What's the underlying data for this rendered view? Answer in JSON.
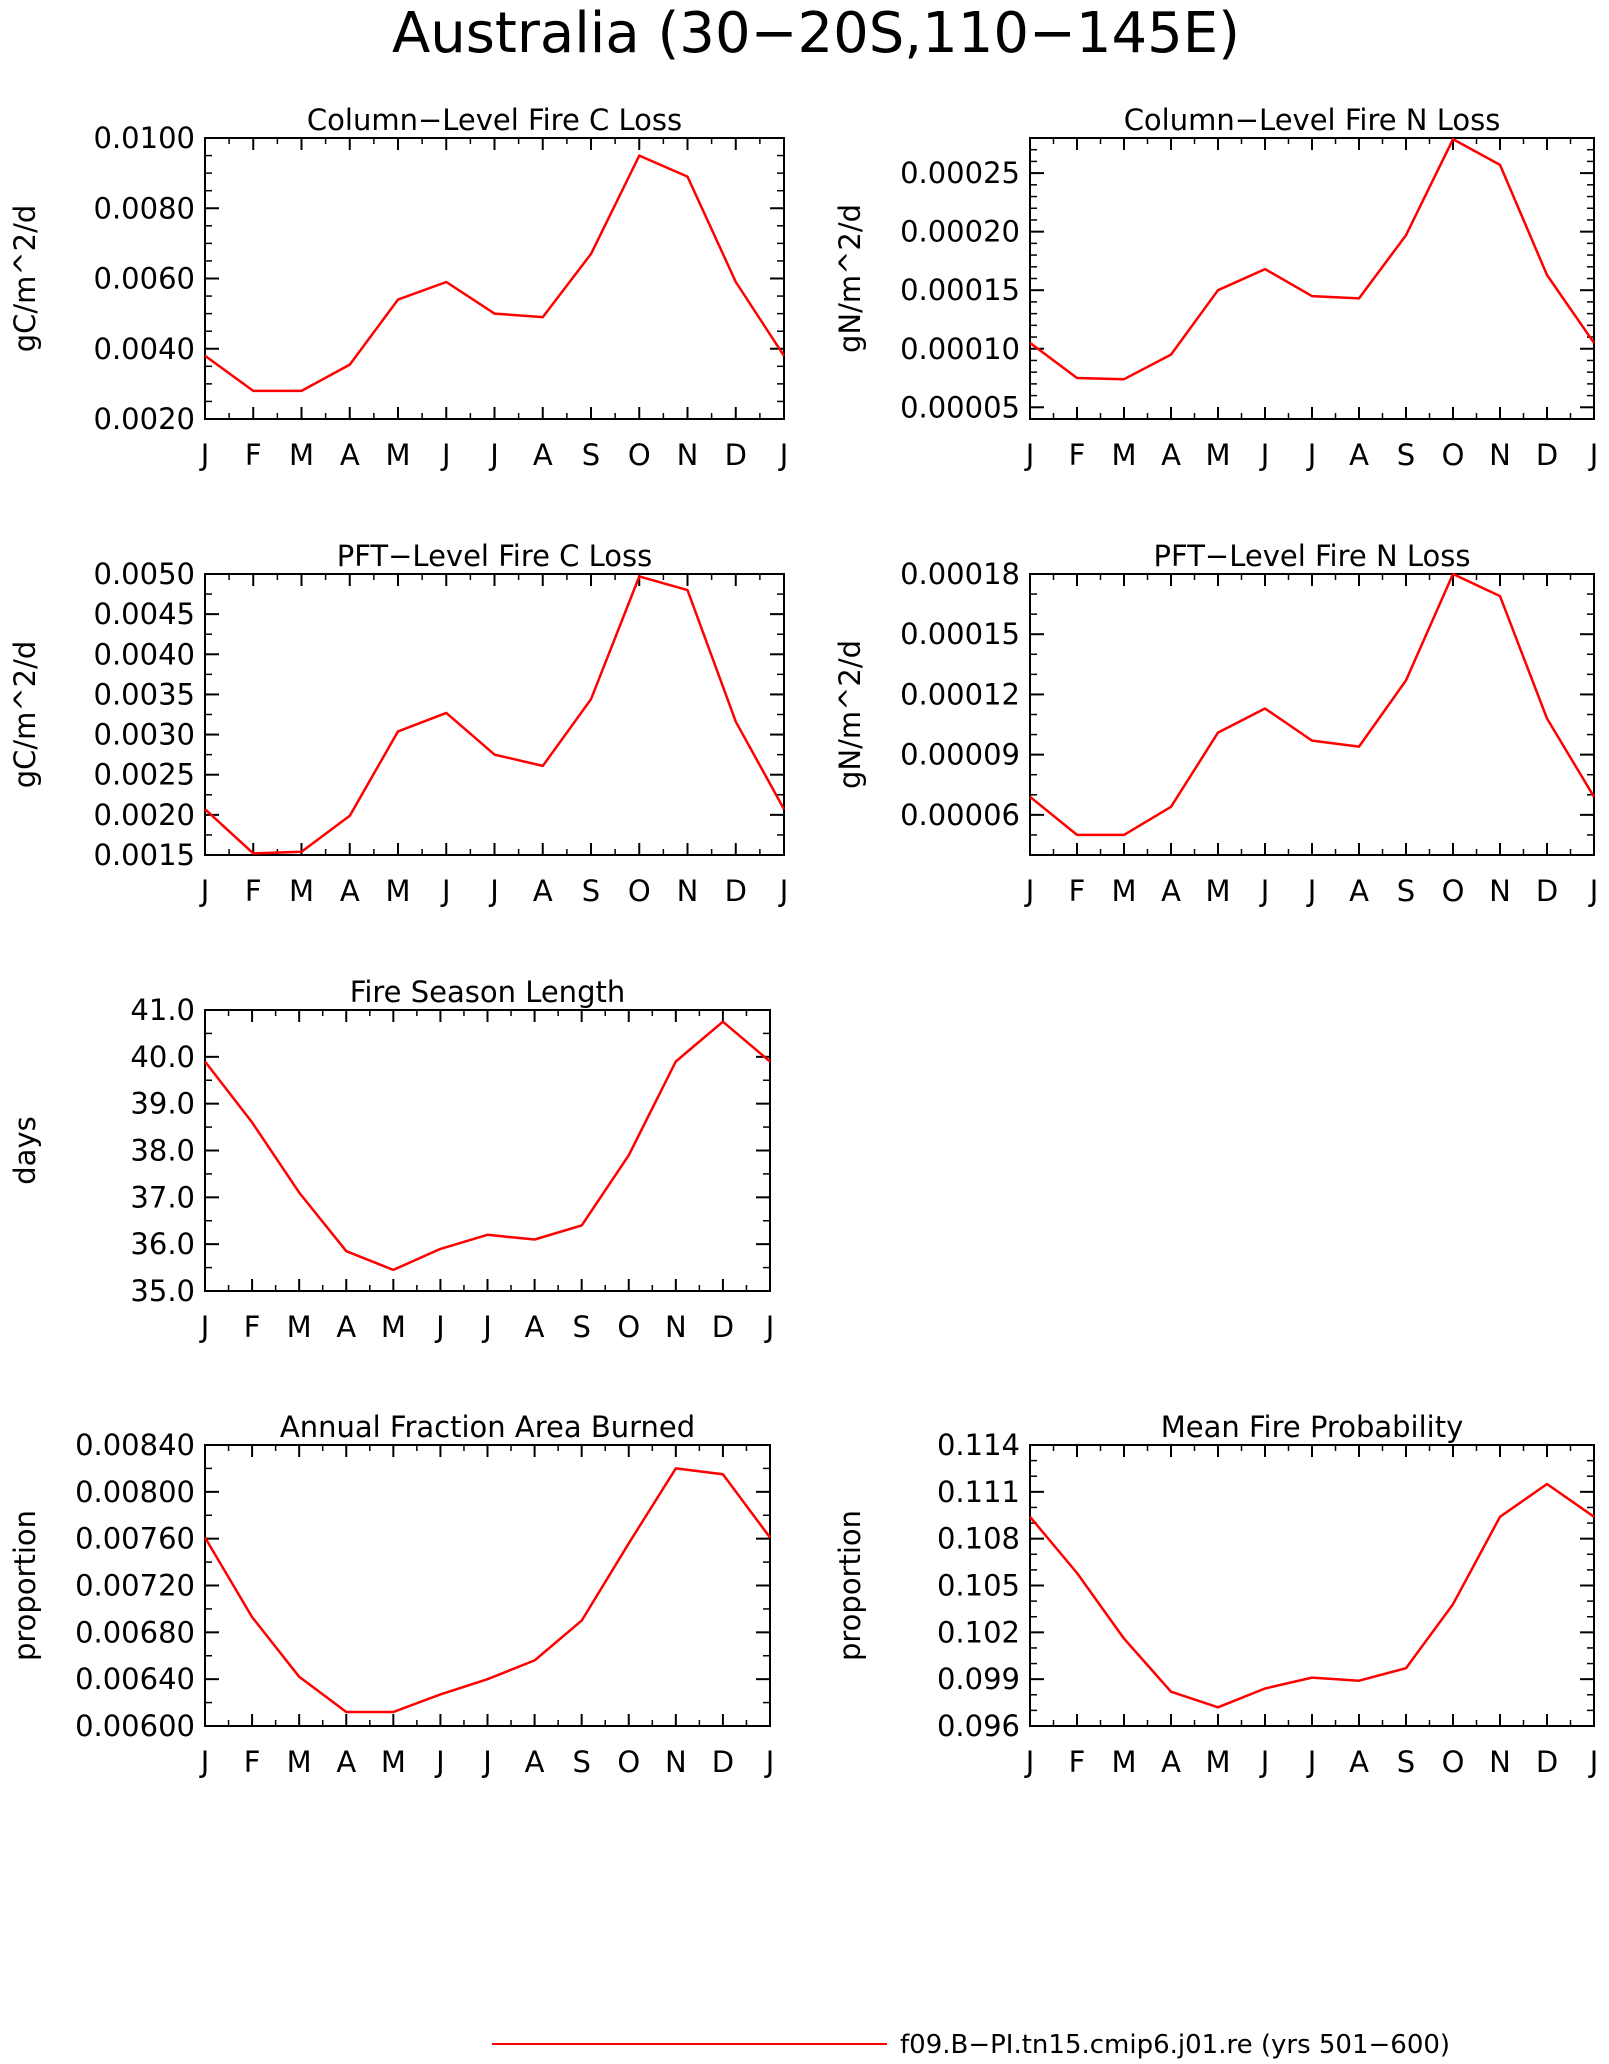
{
  "figure": {
    "title": "Australia (30−20S,110−145E)",
    "line_color": "#ff0000"
  },
  "legend": {
    "label": "f09.B−PI.tn15.cmip6.j01.re (yrs 501−600)"
  },
  "chart_data": [
    {
      "type": "line",
      "title": "Column−Level Fire C Loss",
      "ylabel": "gC/m^2/d",
      "x": [
        "J",
        "F",
        "M",
        "A",
        "M",
        "J",
        "J",
        "A",
        "S",
        "O",
        "N",
        "D",
        "J"
      ],
      "ylim": [
        0.002,
        0.01
      ],
      "yticks": [
        "0.0020",
        "0.0040",
        "0.0060",
        "0.0080",
        "0.0100"
      ],
      "yminor": 0.0005,
      "values": [
        0.0038,
        0.0028,
        0.0028,
        0.00355,
        0.0054,
        0.0059,
        0.005,
        0.0049,
        0.0067,
        0.0095,
        0.0089,
        0.0059,
        0.0038
      ]
    },
    {
      "type": "line",
      "title": "Column−Level Fire N Loss",
      "ylabel": "gN/m^2/d",
      "x": [
        "J",
        "F",
        "M",
        "A",
        "M",
        "J",
        "J",
        "A",
        "S",
        "O",
        "N",
        "D",
        "J"
      ],
      "ylim": [
        4e-05,
        0.00028
      ],
      "yticks": [
        "0.00005",
        "0.00010",
        "0.00015",
        "0.00020",
        "0.00025"
      ],
      "yminor": 1e-05,
      "values": [
        0.000105,
        7.5e-05,
        7.4e-05,
        9.5e-05,
        0.00015,
        0.000168,
        0.000145,
        0.000143,
        0.000197,
        0.000279,
        0.000257,
        0.000163,
        0.000105
      ]
    },
    {
      "type": "line",
      "title": "PFT−Level Fire C Loss",
      "ylabel": "gC/m^2/d",
      "x": [
        "J",
        "F",
        "M",
        "A",
        "M",
        "J",
        "J",
        "A",
        "S",
        "O",
        "N",
        "D",
        "J"
      ],
      "ylim": [
        0.0015,
        0.005
      ],
      "yticks": [
        "0.0015",
        "0.0020",
        "0.0025",
        "0.0030",
        "0.0035",
        "0.0040",
        "0.0045",
        "0.0050"
      ],
      "yminor": 0.00025,
      "values": [
        0.00207,
        0.00152,
        0.00154,
        0.00199,
        0.00304,
        0.00327,
        0.00275,
        0.00261,
        0.00344,
        0.00497,
        0.0048,
        0.00316,
        0.00207
      ]
    },
    {
      "type": "line",
      "title": "PFT−Level Fire N Loss",
      "ylabel": "gN/m^2/d",
      "x": [
        "J",
        "F",
        "M",
        "A",
        "M",
        "J",
        "J",
        "A",
        "S",
        "O",
        "N",
        "D",
        "J"
      ],
      "ylim": [
        4e-05,
        0.00018
      ],
      "yticks": [
        "0.00006",
        "0.00009",
        "0.00012",
        "0.00015",
        "0.00018"
      ],
      "yminor": 1e-05,
      "values": [
        6.9e-05,
        5e-05,
        5e-05,
        6.4e-05,
        0.000101,
        0.000113,
        9.7e-05,
        9.4e-05,
        0.000127,
        0.00018,
        0.000169,
        0.000108,
        6.9e-05
      ]
    },
    {
      "type": "line",
      "title": "Fire Season Length",
      "ylabel": "days",
      "x": [
        "J",
        "F",
        "M",
        "A",
        "M",
        "J",
        "J",
        "A",
        "S",
        "O",
        "N",
        "D",
        "J"
      ],
      "ylim": [
        35,
        41
      ],
      "yticks": [
        "35.0",
        "36.0",
        "37.0",
        "38.0",
        "39.0",
        "40.0",
        "41.0"
      ],
      "yminor": 0.5,
      "values": [
        39.9,
        38.6,
        37.1,
        35.85,
        35.45,
        35.9,
        36.2,
        36.1,
        36.4,
        37.9,
        39.9,
        40.75,
        39.9
      ]
    },
    {
      "type": "line",
      "title": "Annual Fraction Area Burned",
      "ylabel": "proportion",
      "x": [
        "J",
        "F",
        "M",
        "A",
        "M",
        "J",
        "J",
        "A",
        "S",
        "O",
        "N",
        "D",
        "J"
      ],
      "ylim": [
        0.006,
        0.0084
      ],
      "yticks": [
        "0.00600",
        "0.00640",
        "0.00680",
        "0.00720",
        "0.00760",
        "0.00800",
        "0.00840"
      ],
      "yminor": 0.0002,
      "values": [
        0.00761,
        0.00693,
        0.00642,
        0.00612,
        0.00612,
        0.00627,
        0.0064,
        0.00656,
        0.0069,
        0.00756,
        0.0082,
        0.00815,
        0.00761
      ]
    },
    {
      "type": "line",
      "title": "Mean Fire Probability",
      "ylabel": "proportion",
      "x": [
        "J",
        "F",
        "M",
        "A",
        "M",
        "J",
        "J",
        "A",
        "S",
        "O",
        "N",
        "D",
        "J"
      ],
      "ylim": [
        0.096,
        0.114
      ],
      "yticks": [
        "0.096",
        "0.099",
        "0.102",
        "0.105",
        "0.108",
        "0.111",
        "0.114"
      ],
      "yminor": 0.001,
      "values": [
        0.1094,
        0.1058,
        0.1016,
        0.0982,
        0.0972,
        0.0984,
        0.0991,
        0.0989,
        0.0997,
        0.1038,
        0.1094,
        0.1115,
        0.1094
      ]
    }
  ]
}
